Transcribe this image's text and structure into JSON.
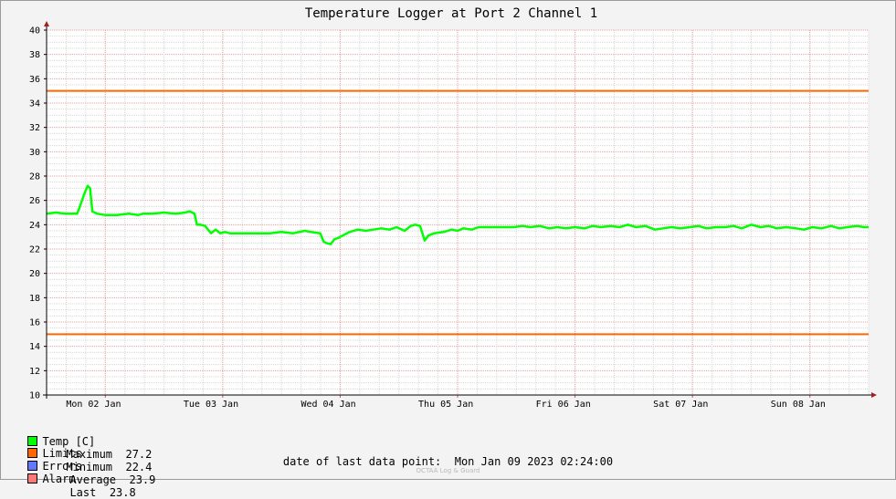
{
  "chart_data": {
    "type": "line",
    "title": "Temperature Logger at Port 2 Channel 1",
    "ylim": [
      10,
      40
    ],
    "y_ticks": [
      10,
      12,
      14,
      16,
      18,
      20,
      22,
      24,
      26,
      28,
      30,
      32,
      34,
      36,
      38,
      40
    ],
    "x_range_days": [
      0,
      7
    ],
    "x_tick_labels": [
      "Mon 02 Jan",
      "Tue 03 Jan",
      "Wed 04 Jan",
      "Thu 05 Jan",
      "Fri 06 Jan",
      "Sat 07 Jan",
      "Sun 08 Jan"
    ],
    "grid": true,
    "colors": {
      "temp": "#00ff00",
      "limits": "#ff6600",
      "errors": "#6677ff",
      "alarm": "#ff7777",
      "grid_minor": "#d8d8d8",
      "grid_major": "#e8a0a0",
      "axis": "#000000"
    },
    "limits": {
      "upper": 35,
      "lower": 15
    },
    "series": [
      {
        "name": "Temp [C]",
        "x": [
          0.0,
          0.08,
          0.16,
          0.26,
          0.28,
          0.32,
          0.35,
          0.37,
          0.39,
          0.41,
          0.43,
          0.5,
          0.6,
          0.7,
          0.78,
          0.82,
          0.9,
          1.0,
          1.1,
          1.18,
          1.22,
          1.26,
          1.28,
          1.31,
          1.35,
          1.4,
          1.44,
          1.48,
          1.52,
          1.56,
          1.6,
          1.7,
          1.8,
          1.9,
          2.0,
          2.1,
          2.2,
          2.25,
          2.33,
          2.36,
          2.38,
          2.42,
          2.45,
          2.48,
          2.52,
          2.58,
          2.65,
          2.72,
          2.78,
          2.85,
          2.92,
          2.98,
          3.05,
          3.1,
          3.14,
          3.18,
          3.22,
          3.25,
          3.3,
          3.38,
          3.45,
          3.5,
          3.55,
          3.62,
          3.68,
          3.75,
          3.82,
          3.9,
          3.98,
          4.05,
          4.12,
          4.2,
          4.28,
          4.35,
          4.42,
          4.5,
          4.58,
          4.65,
          4.72,
          4.8,
          4.88,
          4.95,
          5.02,
          5.1,
          5.18,
          5.25,
          5.32,
          5.4,
          5.48,
          5.55,
          5.62,
          5.7,
          5.78,
          5.85,
          5.92,
          6.0,
          6.08,
          6.15,
          6.22,
          6.3,
          6.38,
          6.45,
          6.52,
          6.6,
          6.68,
          6.75,
          6.82,
          6.9,
          6.96,
          7.0
        ],
        "values": [
          24.9,
          25.0,
          24.9,
          24.9,
          25.4,
          26.5,
          27.2,
          27.0,
          25.1,
          25.0,
          24.9,
          24.8,
          24.8,
          24.9,
          24.8,
          24.9,
          24.9,
          25.0,
          24.9,
          25.0,
          25.1,
          24.9,
          24.0,
          24.0,
          23.9,
          23.3,
          23.6,
          23.3,
          23.4,
          23.3,
          23.3,
          23.3,
          23.3,
          23.3,
          23.4,
          23.3,
          23.5,
          23.4,
          23.3,
          22.6,
          22.5,
          22.4,
          22.8,
          22.9,
          23.1,
          23.4,
          23.6,
          23.5,
          23.6,
          23.7,
          23.6,
          23.8,
          23.5,
          23.9,
          24.0,
          23.9,
          22.7,
          23.1,
          23.3,
          23.4,
          23.6,
          23.5,
          23.7,
          23.6,
          23.8,
          23.8,
          23.8,
          23.8,
          23.8,
          23.9,
          23.8,
          23.9,
          23.7,
          23.8,
          23.7,
          23.8,
          23.7,
          23.9,
          23.8,
          23.9,
          23.8,
          24.0,
          23.8,
          23.9,
          23.6,
          23.7,
          23.8,
          23.7,
          23.8,
          23.9,
          23.7,
          23.8,
          23.8,
          23.9,
          23.7,
          24.0,
          23.8,
          23.9,
          23.7,
          23.8,
          23.7,
          23.6,
          23.8,
          23.7,
          23.9,
          23.7,
          23.8,
          23.9,
          23.8,
          23.8
        ]
      }
    ]
  },
  "legend": {
    "temp_label": "Temp [C]",
    "maximum_label": "Maximum",
    "maximum_value": "27.2",
    "minimum_label": "Minimum",
    "minimum_value": "22.4",
    "average_label": "Average",
    "average_value": "23.9",
    "last_label": "Last",
    "last_value": "23.8",
    "limits_label": "Limits",
    "errors_label": "Errors",
    "alarm_label": "Alarm"
  },
  "footer": {
    "last_point_label": "date of last data point:",
    "last_point_value": "Mon Jan 09 2023 02:24:00",
    "credit": "OCTAA Log & Guard"
  }
}
